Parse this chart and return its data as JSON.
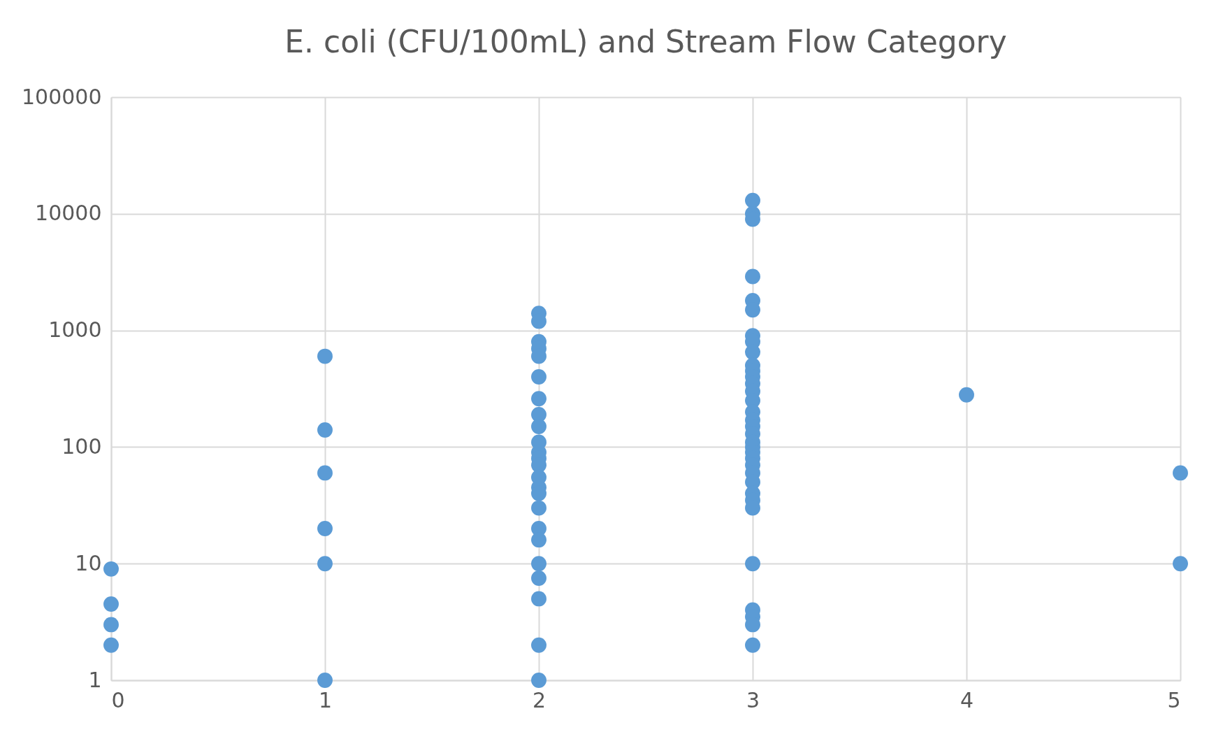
{
  "chart_data": {
    "type": "scatter",
    "title": "E. coli (CFU/100mL) and Stream Flow Category",
    "x": [
      0,
      0,
      0,
      0,
      1,
      1,
      1,
      1,
      1,
      1,
      2,
      2,
      2,
      2,
      2,
      2,
      2,
      2,
      2,
      2,
      2,
      2,
      2,
      2,
      2,
      2,
      2,
      2,
      2,
      2,
      2,
      2,
      2,
      2,
      3,
      3,
      3,
      3,
      3,
      3,
      3,
      3,
      3,
      3,
      3,
      3,
      3,
      3,
      3,
      3,
      3,
      3,
      3,
      3,
      3,
      3,
      3,
      3,
      3,
      3,
      3,
      3,
      3,
      3,
      3,
      3,
      3,
      3,
      4,
      5,
      5
    ],
    "series": [
      {
        "color": "#5b9bd5",
        "values": [
          9,
          4.5,
          3,
          2,
          600,
          140,
          60,
          20,
          10,
          1,
          1400,
          1200,
          800,
          700,
          600,
          400,
          260,
          190,
          150,
          110,
          90,
          80,
          70,
          55,
          45,
          40,
          30,
          20,
          16,
          10,
          7.5,
          5,
          2,
          1,
          13000,
          10000,
          9000,
          2900,
          1800,
          1500,
          900,
          800,
          650,
          500,
          450,
          400,
          350,
          300,
          250,
          200,
          170,
          150,
          130,
          110,
          100,
          90,
          80,
          70,
          60,
          50,
          40,
          35,
          30,
          10,
          4,
          3.5,
          3,
          2,
          280,
          60,
          10
        ]
      }
    ],
    "xlim": [
      0,
      5
    ],
    "xticks": [
      0,
      1,
      2,
      3,
      4,
      5
    ],
    "ylim": [
      1,
      100000
    ],
    "yticks": [
      1,
      10,
      100,
      1000,
      10000,
      100000
    ],
    "log": "y",
    "grid": true,
    "marker": "circle"
  }
}
